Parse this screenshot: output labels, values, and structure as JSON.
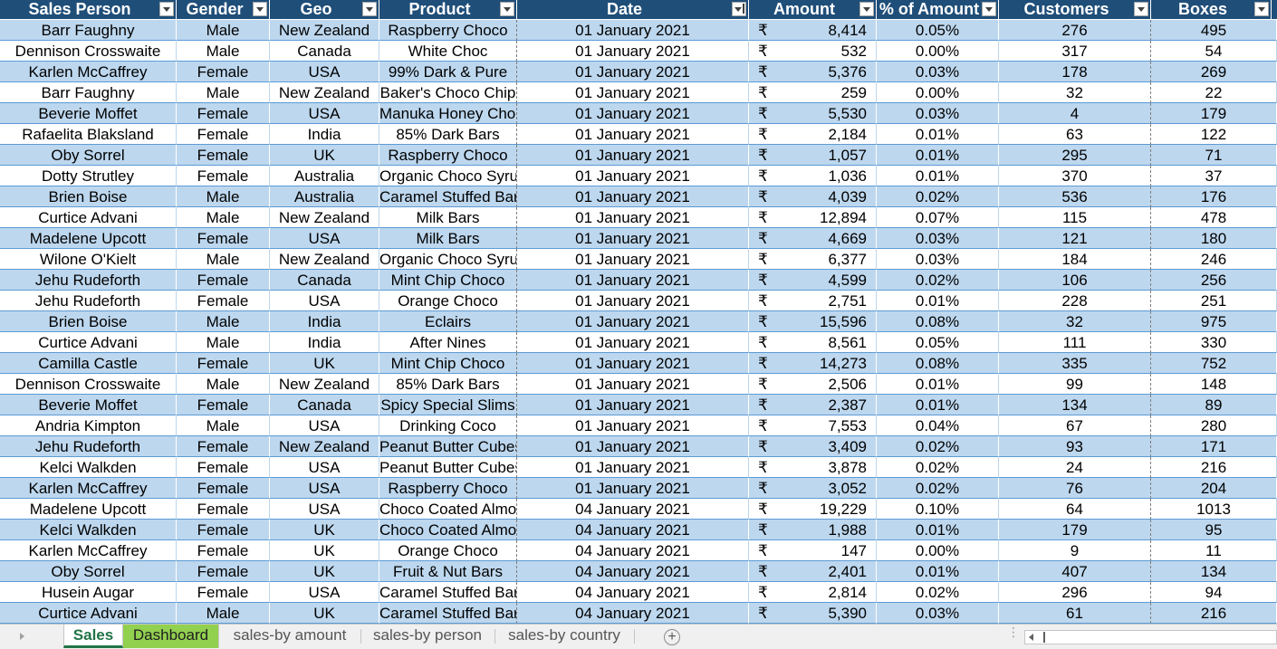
{
  "columns": [
    {
      "label": "Sales Person",
      "filter": "filter-dropdown-icon"
    },
    {
      "label": "Gender",
      "filter": "filter-dropdown-icon"
    },
    {
      "label": "Geo",
      "filter": "filter-dropdown-icon"
    },
    {
      "label": "Product",
      "filter": "filter-dropdown-icon"
    },
    {
      "label": "Date",
      "filter": "sort-filter-icon"
    },
    {
      "label": "Amount",
      "filter": "filter-dropdown-icon"
    },
    {
      "label": "% of Amount",
      "filter": "filter-dropdown-icon"
    },
    {
      "label": "Customers",
      "filter": "filter-dropdown-icon"
    },
    {
      "label": "Boxes",
      "filter": "filter-dropdown-icon"
    }
  ],
  "currency_symbol": "₹",
  "rows": [
    [
      "Barr Faughny",
      "Male",
      "New Zealand",
      "Raspberry Choco",
      "01 January 2021",
      "8,414",
      "0.05%",
      "276",
      "495"
    ],
    [
      "Dennison Crosswaite",
      "Male",
      "Canada",
      "White Choc",
      "01 January 2021",
      "532",
      "0.00%",
      "317",
      "54"
    ],
    [
      "Karlen McCaffrey",
      "Female",
      "USA",
      "99% Dark & Pure",
      "01 January 2021",
      "5,376",
      "0.03%",
      "178",
      "269"
    ],
    [
      "Barr Faughny",
      "Male",
      "New Zealand",
      "Baker's Choco Chip",
      "01 January 2021",
      "259",
      "0.00%",
      "32",
      "22"
    ],
    [
      "Beverie Moffet",
      "Female",
      "USA",
      "Manuka Honey Choco",
      "01 January 2021",
      "5,530",
      "0.03%",
      "4",
      "179"
    ],
    [
      "Rafaelita Blaksland",
      "Female",
      "India",
      "85% Dark Bars",
      "01 January 2021",
      "2,184",
      "0.01%",
      "63",
      "122"
    ],
    [
      "Oby Sorrel",
      "Female",
      "UK",
      "Raspberry Choco",
      "01 January 2021",
      "1,057",
      "0.01%",
      "295",
      "71"
    ],
    [
      "Dotty Strutley",
      "Female",
      "Australia",
      "Organic Choco Syrup",
      "01 January 2021",
      "1,036",
      "0.01%",
      "370",
      "37"
    ],
    [
      "Brien Boise",
      "Male",
      "Australia",
      "Caramel Stuffed Bars",
      "01 January 2021",
      "4,039",
      "0.02%",
      "536",
      "176"
    ],
    [
      "Curtice Advani",
      "Male",
      "New Zealand",
      "Milk Bars",
      "01 January 2021",
      "12,894",
      "0.07%",
      "115",
      "478"
    ],
    [
      "Madelene Upcott",
      "Female",
      "USA",
      "Milk Bars",
      "01 January 2021",
      "4,669",
      "0.03%",
      "121",
      "180"
    ],
    [
      "Wilone O'Kielt",
      "Male",
      "New Zealand",
      "Organic Choco Syrup",
      "01 January 2021",
      "6,377",
      "0.03%",
      "184",
      "246"
    ],
    [
      "Jehu Rudeforth",
      "Female",
      "Canada",
      "Mint Chip Choco",
      "01 January 2021",
      "4,599",
      "0.02%",
      "106",
      "256"
    ],
    [
      "Jehu Rudeforth",
      "Female",
      "USA",
      "Orange Choco",
      "01 January 2021",
      "2,751",
      "0.01%",
      "228",
      "251"
    ],
    [
      "Brien Boise",
      "Male",
      "India",
      "Eclairs",
      "01 January 2021",
      "15,596",
      "0.08%",
      "32",
      "975"
    ],
    [
      "Curtice Advani",
      "Male",
      "India",
      "After Nines",
      "01 January 2021",
      "8,561",
      "0.05%",
      "111",
      "330"
    ],
    [
      "Camilla Castle",
      "Female",
      "UK",
      "Mint Chip Choco",
      "01 January 2021",
      "14,273",
      "0.08%",
      "335",
      "752"
    ],
    [
      "Dennison Crosswaite",
      "Male",
      "New Zealand",
      "85% Dark Bars",
      "01 January 2021",
      "2,506",
      "0.01%",
      "99",
      "148"
    ],
    [
      "Beverie Moffet",
      "Female",
      "Canada",
      "Spicy Special Slims",
      "01 January 2021",
      "2,387",
      "0.01%",
      "134",
      "89"
    ],
    [
      "Andria Kimpton",
      "Male",
      "USA",
      "Drinking Coco",
      "01 January 2021",
      "7,553",
      "0.04%",
      "67",
      "280"
    ],
    [
      "Jehu Rudeforth",
      "Female",
      "New Zealand",
      "Peanut Butter Cubes",
      "01 January 2021",
      "3,409",
      "0.02%",
      "93",
      "171"
    ],
    [
      "Kelci Walkden",
      "Female",
      "USA",
      "Peanut Butter Cubes",
      "01 January 2021",
      "3,878",
      "0.02%",
      "24",
      "216"
    ],
    [
      "Karlen McCaffrey",
      "Female",
      "USA",
      "Raspberry Choco",
      "01 January 2021",
      "3,052",
      "0.02%",
      "76",
      "204"
    ],
    [
      "Madelene Upcott",
      "Female",
      "USA",
      "Choco Coated Almonds",
      "04 January 2021",
      "19,229",
      "0.10%",
      "64",
      "1013"
    ],
    [
      "Kelci Walkden",
      "Female",
      "UK",
      "Choco Coated Almonds",
      "04 January 2021",
      "1,988",
      "0.01%",
      "179",
      "95"
    ],
    [
      "Karlen McCaffrey",
      "Female",
      "UK",
      "Orange Choco",
      "04 January 2021",
      "147",
      "0.00%",
      "9",
      "11"
    ],
    [
      "Oby Sorrel",
      "Female",
      "UK",
      "Fruit & Nut Bars",
      "04 January 2021",
      "2,401",
      "0.01%",
      "407",
      "134"
    ],
    [
      "Husein Augar",
      "Female",
      "USA",
      "Caramel Stuffed Bars",
      "04 January 2021",
      "2,814",
      "0.02%",
      "296",
      "94"
    ],
    [
      "Curtice Advani",
      "Male",
      "UK",
      "Caramel Stuffed Bars",
      "04 January 2021",
      "5,390",
      "0.03%",
      "61",
      "216"
    ]
  ],
  "tabs": [
    {
      "label": "Sales",
      "state": "active"
    },
    {
      "label": "Dashboard",
      "state": "green"
    },
    {
      "label": "sales-by amount",
      "state": "plain"
    },
    {
      "label": "sales-by person",
      "state": "plain"
    },
    {
      "label": "sales-by country",
      "state": "plain"
    }
  ],
  "add_sheet_label": "+",
  "colors": {
    "header_bg": "#1f4e79",
    "band_blue": "#bdd7ee",
    "row_border": "#5b9bd5",
    "active_tab_text": "#217346",
    "dashboard_tab_bg": "#92d050"
  }
}
